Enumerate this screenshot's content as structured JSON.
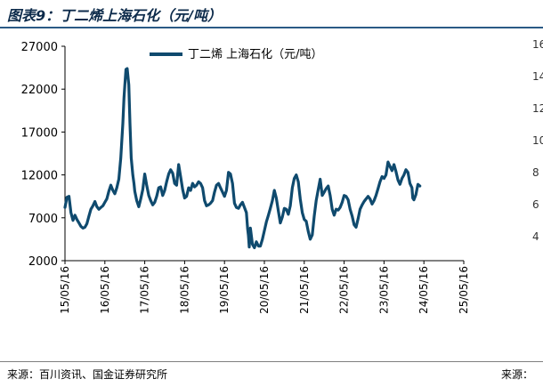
{
  "title": "图表9：丁二烯上海石化（元/吨）",
  "source_left": "来源：百川资讯、国金证券研究所",
  "source_right": "来源：",
  "adjacent_chart_ticks": [
    "16",
    "14",
    "12",
    "10",
    "8",
    "6",
    "4"
  ],
  "colors": {
    "line": "#0f4a6e",
    "title": "#0d2b4b",
    "rule": "#2b5a85"
  },
  "chart_data": {
    "type": "line",
    "title": "",
    "xlabel": "",
    "ylabel": "",
    "ylim": [
      2000,
      27000
    ],
    "yticks": [
      2000,
      7000,
      12000,
      17000,
      22000,
      27000
    ],
    "xticks": [
      "15/05/16",
      "16/05/16",
      "17/05/16",
      "18/05/16",
      "19/05/16",
      "20/05/16",
      "21/05/16",
      "22/05/16",
      "23/05/16",
      "24/05/16",
      "25/05/16"
    ],
    "legend_position": "top",
    "series": [
      {
        "name": "丁二烯 上海石化（元/吨）",
        "points": [
          [
            0.0,
            8200
          ],
          [
            0.05,
            9400
          ],
          [
            0.1,
            9500
          ],
          [
            0.15,
            7600
          ],
          [
            0.2,
            6700
          ],
          [
            0.25,
            7300
          ],
          [
            0.3,
            6800
          ],
          [
            0.35,
            6400
          ],
          [
            0.4,
            6000
          ],
          [
            0.45,
            5800
          ],
          [
            0.5,
            5900
          ],
          [
            0.55,
            6300
          ],
          [
            0.6,
            7200
          ],
          [
            0.65,
            8000
          ],
          [
            0.7,
            8400
          ],
          [
            0.75,
            8900
          ],
          [
            0.8,
            8300
          ],
          [
            0.85,
            8000
          ],
          [
            0.9,
            8200
          ],
          [
            0.95,
            8400
          ],
          [
            1.0,
            8800
          ],
          [
            1.05,
            9200
          ],
          [
            1.1,
            10100
          ],
          [
            1.15,
            10800
          ],
          [
            1.2,
            10200
          ],
          [
            1.25,
            9800
          ],
          [
            1.3,
            10500
          ],
          [
            1.35,
            11500
          ],
          [
            1.4,
            14000
          ],
          [
            1.45,
            18000
          ],
          [
            1.48,
            21000
          ],
          [
            1.5,
            22400
          ],
          [
            1.53,
            24300
          ],
          [
            1.56,
            24400
          ],
          [
            1.6,
            22500
          ],
          [
            1.63,
            18000
          ],
          [
            1.66,
            14000
          ],
          [
            1.7,
            12000
          ],
          [
            1.73,
            11000
          ],
          [
            1.75,
            10100
          ],
          [
            1.8,
            9000
          ],
          [
            1.85,
            8300
          ],
          [
            1.9,
            9200
          ],
          [
            1.95,
            10300
          ],
          [
            2.0,
            12100
          ],
          [
            2.05,
            10800
          ],
          [
            2.1,
            9600
          ],
          [
            2.15,
            9000
          ],
          [
            2.2,
            8500
          ],
          [
            2.25,
            8800
          ],
          [
            2.3,
            9500
          ],
          [
            2.35,
            10500
          ],
          [
            2.4,
            10600
          ],
          [
            2.45,
            9600
          ],
          [
            2.5,
            10200
          ],
          [
            2.55,
            11200
          ],
          [
            2.6,
            12100
          ],
          [
            2.65,
            12600
          ],
          [
            2.7,
            12200
          ],
          [
            2.75,
            11000
          ],
          [
            2.8,
            10800
          ],
          [
            2.85,
            13200
          ],
          [
            2.9,
            11800
          ],
          [
            2.95,
            10300
          ],
          [
            3.0,
            9300
          ],
          [
            3.05,
            9500
          ],
          [
            3.1,
            10500
          ],
          [
            3.15,
            10200
          ],
          [
            3.2,
            11000
          ],
          [
            3.25,
            10600
          ],
          [
            3.3,
            10800
          ],
          [
            3.35,
            11200
          ],
          [
            3.4,
            11000
          ],
          [
            3.45,
            10500
          ],
          [
            3.5,
            9000
          ],
          [
            3.55,
            8400
          ],
          [
            3.6,
            8500
          ],
          [
            3.65,
            8700
          ],
          [
            3.7,
            9000
          ],
          [
            3.75,
            10000
          ],
          [
            3.8,
            10800
          ],
          [
            3.85,
            11000
          ],
          [
            3.9,
            10500
          ],
          [
            3.95,
            10000
          ],
          [
            4.0,
            9500
          ],
          [
            4.05,
            10200
          ],
          [
            4.1,
            12300
          ],
          [
            4.15,
            12100
          ],
          [
            4.2,
            11000
          ],
          [
            4.25,
            8700
          ],
          [
            4.3,
            8200
          ],
          [
            4.35,
            8100
          ],
          [
            4.4,
            8500
          ],
          [
            4.45,
            8800
          ],
          [
            4.5,
            8200
          ],
          [
            4.55,
            7600
          ],
          [
            4.58,
            5700
          ],
          [
            4.6,
            4900
          ],
          [
            4.62,
            3600
          ],
          [
            4.65,
            5800
          ],
          [
            4.7,
            3900
          ],
          [
            4.75,
            3500
          ],
          [
            4.8,
            4200
          ],
          [
            4.85,
            3700
          ],
          [
            4.9,
            3700
          ],
          [
            4.95,
            4500
          ],
          [
            5.0,
            5500
          ],
          [
            5.05,
            6500
          ],
          [
            5.1,
            7300
          ],
          [
            5.15,
            8100
          ],
          [
            5.2,
            9000
          ],
          [
            5.25,
            10200
          ],
          [
            5.3,
            9300
          ],
          [
            5.35,
            7800
          ],
          [
            5.4,
            6400
          ],
          [
            5.45,
            7100
          ],
          [
            5.5,
            8100
          ],
          [
            5.55,
            8000
          ],
          [
            5.6,
            7400
          ],
          [
            5.65,
            8400
          ],
          [
            5.7,
            10500
          ],
          [
            5.75,
            11600
          ],
          [
            5.8,
            12000
          ],
          [
            5.85,
            11200
          ],
          [
            5.9,
            9200
          ],
          [
            5.95,
            7600
          ],
          [
            6.0,
            6800
          ],
          [
            6.05,
            6600
          ],
          [
            6.1,
            5400
          ],
          [
            6.15,
            4500
          ],
          [
            6.2,
            5000
          ],
          [
            6.25,
            7200
          ],
          [
            6.3,
            9000
          ],
          [
            6.35,
            10300
          ],
          [
            6.4,
            11500
          ],
          [
            6.45,
            9600
          ],
          [
            6.5,
            10000
          ],
          [
            6.55,
            10400
          ],
          [
            6.6,
            10700
          ],
          [
            6.65,
            9600
          ],
          [
            6.7,
            8000
          ],
          [
            6.75,
            7300
          ],
          [
            6.8,
            8000
          ],
          [
            6.85,
            7900
          ],
          [
            6.9,
            8200
          ],
          [
            6.95,
            8800
          ],
          [
            7.0,
            9600
          ],
          [
            7.05,
            9500
          ],
          [
            7.1,
            9100
          ],
          [
            7.15,
            8000
          ],
          [
            7.2,
            7200
          ],
          [
            7.25,
            6200
          ],
          [
            7.3,
            5900
          ],
          [
            7.35,
            6900
          ],
          [
            7.4,
            8000
          ],
          [
            7.45,
            8500
          ],
          [
            7.5,
            8900
          ],
          [
            7.55,
            9200
          ],
          [
            7.6,
            9500
          ],
          [
            7.65,
            9200
          ],
          [
            7.7,
            8600
          ],
          [
            7.75,
            9000
          ],
          [
            7.8,
            9600
          ],
          [
            7.85,
            10400
          ],
          [
            7.9,
            11200
          ],
          [
            7.95,
            11800
          ],
          [
            8.0,
            11600
          ],
          [
            8.05,
            12000
          ],
          [
            8.1,
            13500
          ],
          [
            8.15,
            13000
          ],
          [
            8.2,
            12500
          ],
          [
            8.25,
            13200
          ],
          [
            8.3,
            12400
          ],
          [
            8.35,
            11400
          ],
          [
            8.4,
            10900
          ],
          [
            8.45,
            11600
          ],
          [
            8.5,
            12000
          ],
          [
            8.55,
            12600
          ],
          [
            8.6,
            12300
          ],
          [
            8.65,
            11000
          ],
          [
            8.7,
            10500
          ],
          [
            8.72,
            9300
          ],
          [
            8.75,
            9100
          ],
          [
            8.8,
            9700
          ],
          [
            8.85,
            10900
          ],
          [
            8.9,
            10700
          ]
        ]
      }
    ]
  }
}
